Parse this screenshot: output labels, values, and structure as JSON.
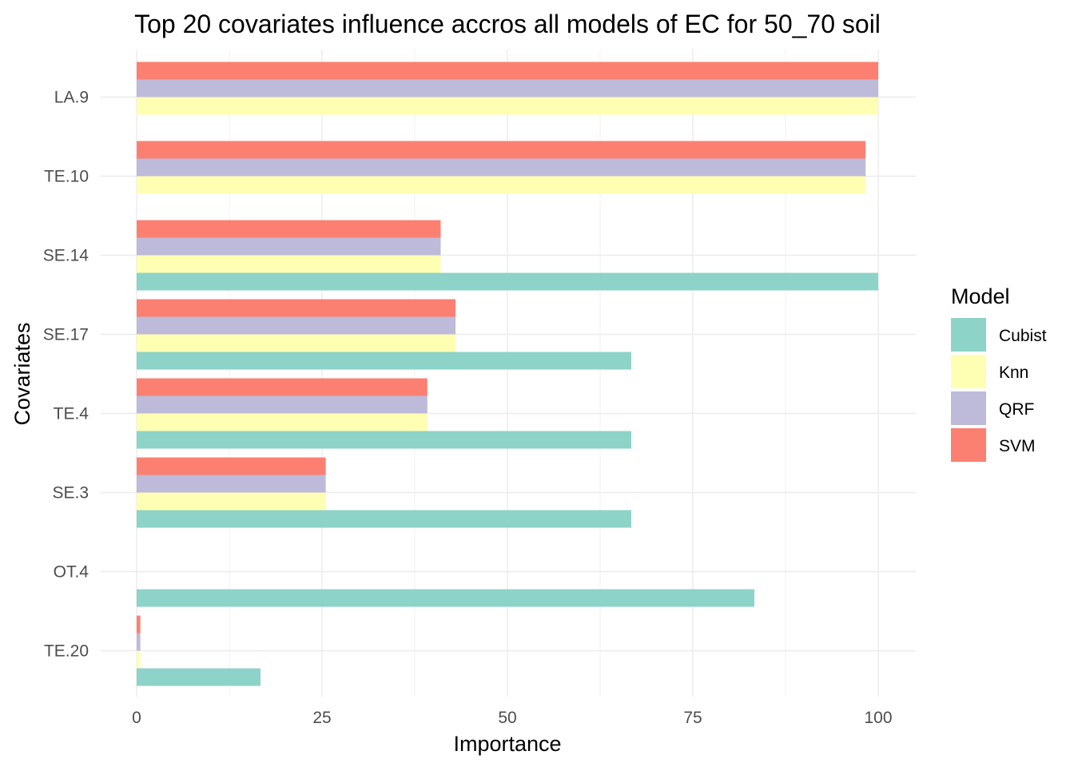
{
  "chart_data": {
    "type": "bar",
    "orientation": "horizontal",
    "title": "Top 20 covariates influence accros all models of EC for 50_70 soil",
    "xlabel": "Importance",
    "ylabel": "Covariates",
    "xlim": [
      0,
      105
    ],
    "xticks": [
      0,
      25,
      50,
      75,
      100
    ],
    "grid": true,
    "legend_title": "Model",
    "legend_position": "right",
    "categories": [
      "LA.9",
      "TE.10",
      "SE.14",
      "SE.17",
      "TE.4",
      "SE.3",
      "OT.4",
      "TE.20"
    ],
    "series": [
      {
        "name": "Cubist",
        "color": "#8DD3C7",
        "values": [
          null,
          null,
          100,
          66.7,
          66.7,
          66.7,
          83.3,
          16.7
        ]
      },
      {
        "name": "Knn",
        "color": "#FFFFB3",
        "values": [
          100,
          98.3,
          41.0,
          43.0,
          39.2,
          25.5,
          null,
          0.5
        ]
      },
      {
        "name": "QRF",
        "color": "#BEBADA",
        "values": [
          100,
          98.3,
          41.0,
          43.0,
          39.2,
          25.5,
          null,
          0.5
        ]
      },
      {
        "name": "SVM",
        "color": "#FB8072",
        "values": [
          100,
          98.3,
          41.0,
          43.0,
          39.2,
          25.5,
          null,
          0.5
        ]
      }
    ]
  }
}
